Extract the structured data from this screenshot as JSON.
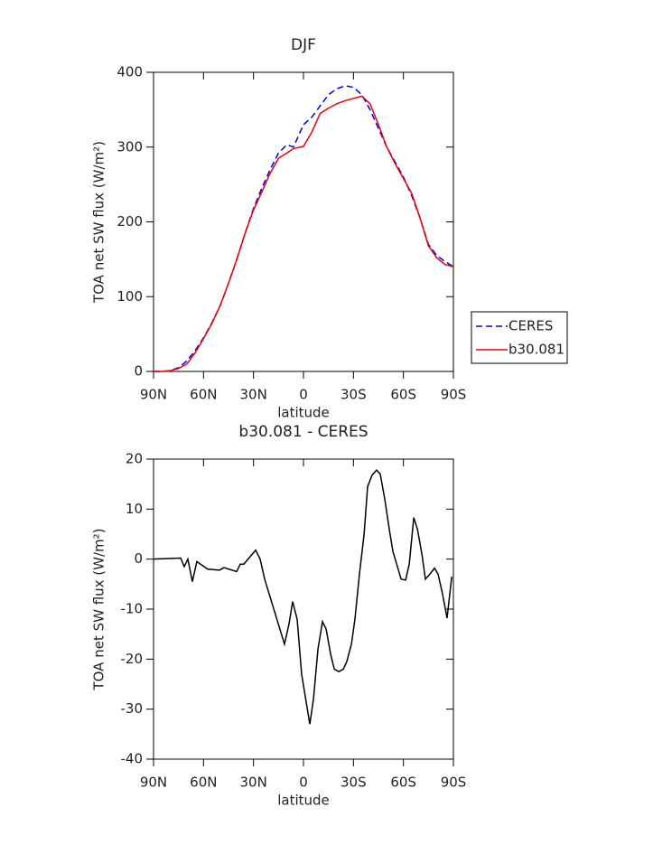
{
  "chart_data": [
    {
      "type": "line",
      "title": "DJF",
      "x_label": "latitude",
      "y_label": "TOA net SW flux (W/m²)",
      "x": [
        90,
        85,
        80,
        75,
        70,
        65,
        60,
        55,
        50,
        45,
        40,
        35,
        30,
        25,
        20,
        15,
        10,
        6,
        0,
        -5,
        -10,
        -15,
        -20,
        -25,
        -30,
        -35,
        -40,
        -45,
        -50,
        -55,
        -60,
        -65,
        -70,
        -75,
        -80,
        -85,
        -90
      ],
      "series": [
        {
          "name": "CERES",
          "color": "#0000dd",
          "style": "dashed",
          "values": [
            0,
            0,
            1,
            5,
            14,
            28,
            45,
            65,
            88,
            118,
            150,
            185,
            218,
            245,
            270,
            292,
            303,
            300,
            330,
            340,
            355,
            370,
            378,
            382,
            380,
            370,
            350,
            325,
            300,
            280,
            260,
            235,
            205,
            170,
            155,
            147,
            140
          ]
        },
        {
          "name": "b30.081",
          "color": "#ee0000",
          "style": "solid",
          "values": [
            0,
            0,
            1,
            4,
            10,
            25,
            44,
            64,
            88,
            118,
            150,
            185,
            216,
            240,
            265,
            285,
            292,
            298,
            301,
            320,
            345,
            352,
            358,
            362,
            365,
            368,
            358,
            330,
            300,
            278,
            258,
            238,
            205,
            168,
            152,
            143,
            140
          ]
        }
      ],
      "xlim": [
        90,
        -90
      ],
      "xticks": [
        {
          "value": 90,
          "label": "90N"
        },
        {
          "value": 60,
          "label": "60N"
        },
        {
          "value": 30,
          "label": "30N"
        },
        0,
        {
          "value": -30,
          "label": "30S"
        },
        {
          "value": -60,
          "label": "60S"
        },
        {
          "value": -90,
          "label": "90S"
        }
      ],
      "ylim": [
        0,
        400
      ],
      "yticks": [
        0,
        100,
        200,
        300,
        400
      ],
      "legend": "right"
    },
    {
      "type": "line",
      "title": "b30.081 - CERES",
      "x_label": "latitude",
      "y_label": "TOA net SW flux (W/m²)",
      "x": [
        90,
        73.7,
        71.6,
        69.4,
        66.7,
        64,
        57.5,
        50.4,
        47.7,
        40.1,
        37.9,
        35.8,
        28.7,
        26,
        23.3,
        11.4,
        8.7,
        6.5,
        3.8,
        1.1,
        -3.8,
        -6,
        -8.7,
        -11.4,
        -13.6,
        -16.3,
        -18.5,
        -21.2,
        -23.9,
        -26,
        -28.8,
        -30.9,
        -33.6,
        -36.4,
        -38.5,
        -41.2,
        -43.9,
        -46.1,
        -48.8,
        -51.5,
        -53.7,
        -56.4,
        -58.6,
        -61.3,
        -63.5,
        -66.2,
        -68.4,
        -71.1,
        -73.2,
        -75.9,
        -78.7,
        -80.8,
        -83.5,
        -86.2,
        -89
      ],
      "color": "#000000",
      "values": [
        0,
        0.2,
        -1.5,
        0,
        -4.5,
        -0.5,
        -2,
        -2.2,
        -1.7,
        -2.5,
        -1,
        -1,
        1.8,
        0,
        -4,
        -17,
        -13,
        -8.5,
        -12,
        -23,
        -33,
        -28,
        -18,
        -12.5,
        -14,
        -19,
        -22,
        -22.5,
        -22,
        -20.5,
        -17,
        -12,
        -3,
        5,
        14.5,
        16.8,
        17.8,
        17,
        12,
        6,
        1.5,
        -1.5,
        -4,
        -4.2,
        -1,
        8.3,
        6,
        1,
        -4,
        -3,
        -1.8,
        -3,
        -7,
        -11.8,
        -3.5
      ],
      "xlim": [
        90,
        -90
      ],
      "xticks": [
        {
          "value": 90,
          "label": "90N"
        },
        {
          "value": 60,
          "label": "60N"
        },
        {
          "value": 30,
          "label": "30N"
        },
        0,
        {
          "value": -30,
          "label": "30S"
        },
        {
          "value": -60,
          "label": "60S"
        },
        {
          "value": -90,
          "label": "90S"
        }
      ],
      "ylim": [
        -40,
        20
      ],
      "yticks": [
        -40,
        -30,
        -20,
        -10,
        0,
        10,
        20
      ]
    }
  ]
}
